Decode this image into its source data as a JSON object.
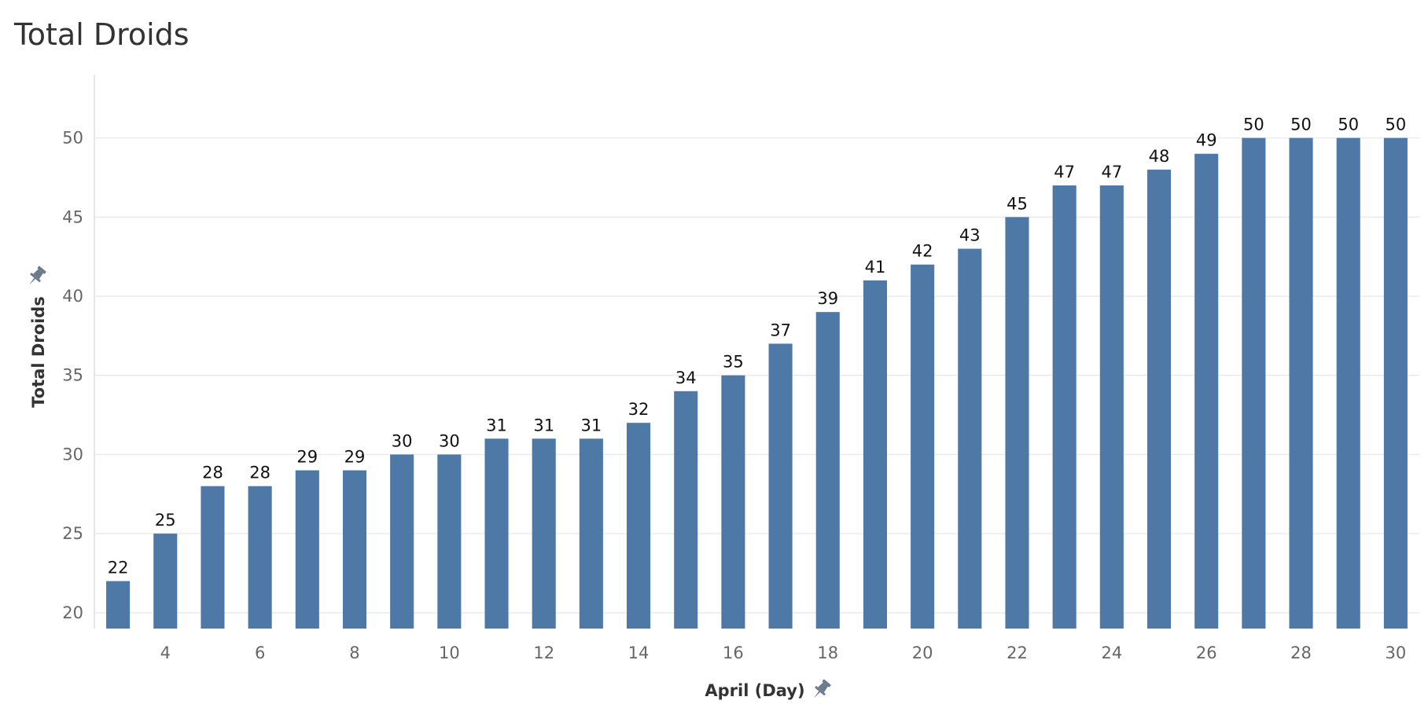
{
  "chart_data": {
    "type": "bar",
    "title": "Total Droids",
    "xlabel": "April (Day)",
    "ylabel": "Total Droids",
    "x": [
      3,
      4,
      5,
      6,
      7,
      8,
      9,
      10,
      11,
      12,
      13,
      14,
      15,
      16,
      17,
      18,
      19,
      20,
      21,
      22,
      23,
      24,
      25,
      26,
      27,
      28,
      29,
      30
    ],
    "values": [
      22,
      25,
      28,
      28,
      29,
      29,
      30,
      30,
      31,
      31,
      31,
      32,
      34,
      35,
      37,
      39,
      41,
      42,
      43,
      45,
      47,
      47,
      48,
      49,
      50,
      50,
      50,
      50
    ],
    "x_ticks": [
      4,
      6,
      8,
      10,
      12,
      14,
      16,
      18,
      20,
      22,
      24,
      26,
      28,
      30
    ],
    "y_ticks": [
      20,
      25,
      30,
      35,
      40,
      45,
      50
    ],
    "ylim": [
      19,
      54
    ],
    "grid": true,
    "data_labels": true,
    "bar_color": "#4e79a7",
    "pin_icon": "pin-icon"
  }
}
